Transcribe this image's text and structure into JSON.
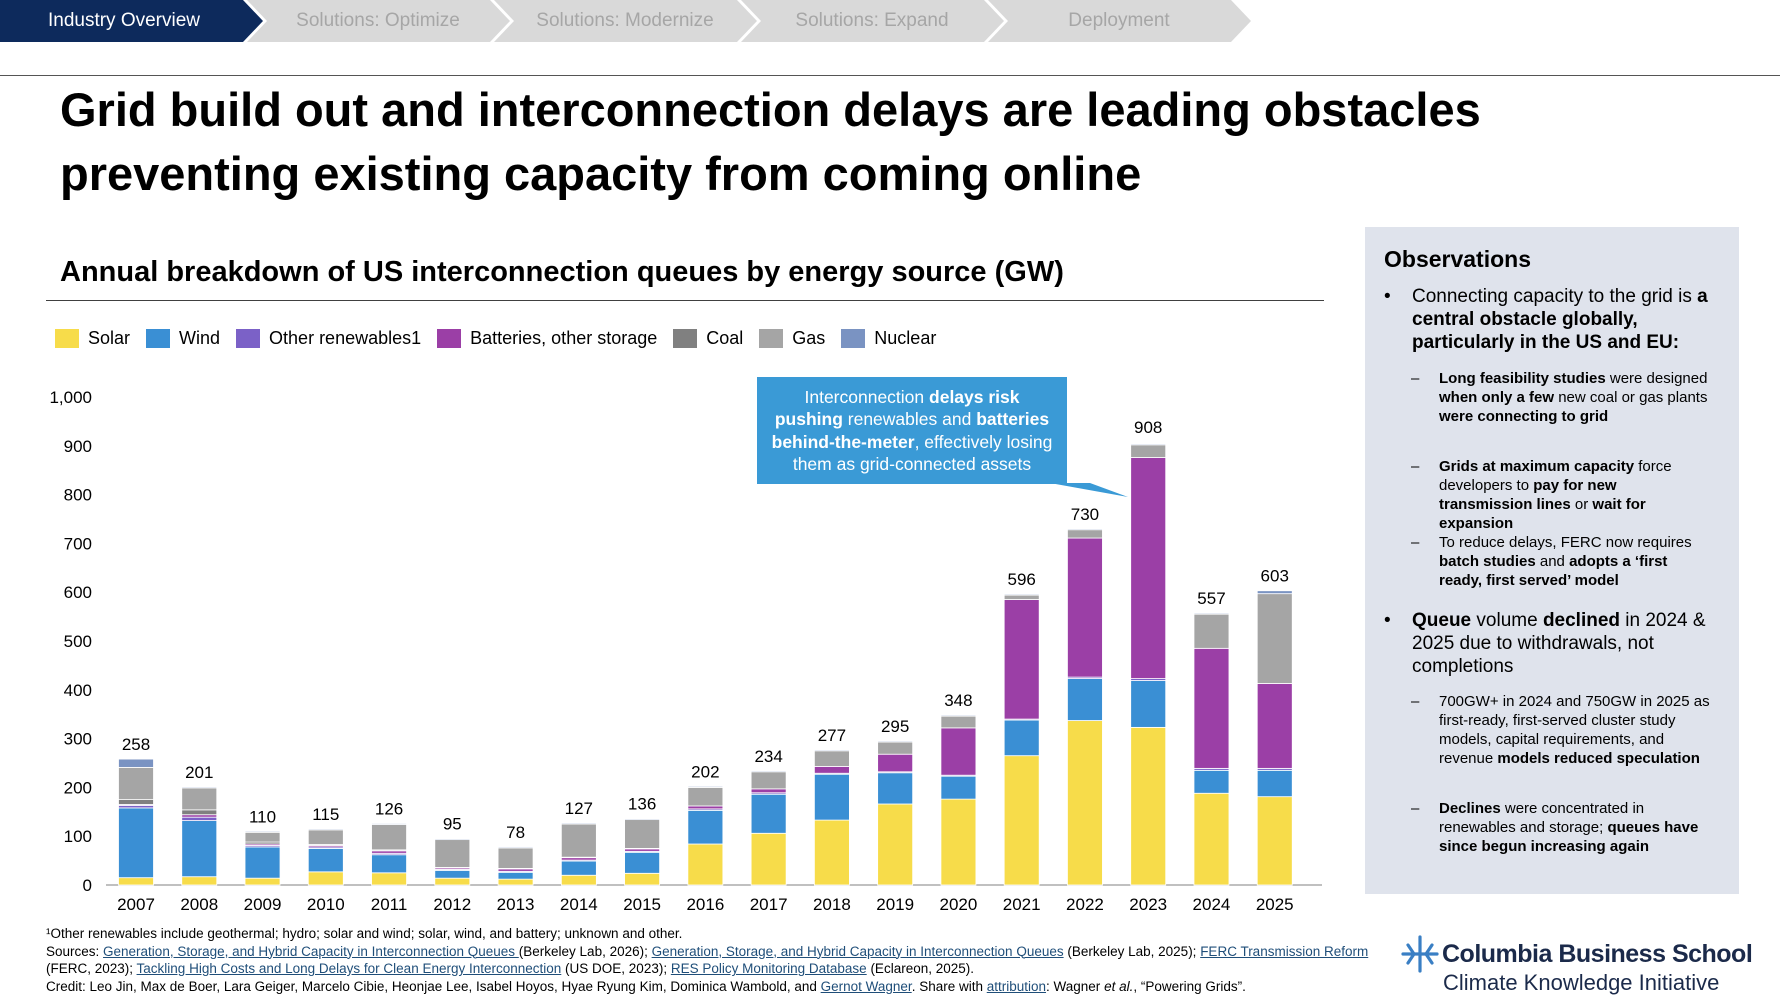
{
  "nav": {
    "tabs": [
      {
        "label": "Industry Overview",
        "active": true
      },
      {
        "label": "Solutions: Optimize",
        "active": false
      },
      {
        "label": "Solutions: Modernize",
        "active": false
      },
      {
        "label": "Solutions: Expand",
        "active": false
      },
      {
        "label": "Deployment",
        "active": false
      }
    ]
  },
  "page": {
    "title": "Grid build out and interconnection delays are leading obstacles preventing existing capacity from coming online"
  },
  "colors": {
    "nav_active": "#0d2a5c",
    "nav_inactive": "#d9d9d9",
    "callout": "#3a9ad6",
    "panel": "#dfe3ec"
  },
  "chart_data": {
    "type": "bar",
    "stacked": true,
    "title": "Annual breakdown of US interconnection queues by energy source (GW)",
    "xlabel": "",
    "ylabel": "",
    "ylim": [
      0,
      1000
    ],
    "yticks": [
      0,
      100,
      200,
      300,
      400,
      500,
      600,
      700,
      800,
      900,
      1000
    ],
    "ytick_labels": [
      "0",
      "100",
      "200",
      "300",
      "400",
      "500",
      "600",
      "700",
      "800",
      "900",
      "1,000"
    ],
    "grid": false,
    "legend_position": "top-left",
    "categories": [
      "2007",
      "2008",
      "2009",
      "2010",
      "2011",
      "2012",
      "2013",
      "2014",
      "2015",
      "2016",
      "2017",
      "2018",
      "2019",
      "2020",
      "2021",
      "2022",
      "2023",
      "2024",
      "2025"
    ],
    "totals": [
      258,
      201,
      110,
      115,
      126,
      95,
      78,
      127,
      136,
      202,
      234,
      277,
      295,
      348,
      596,
      730,
      908,
      557,
      603
    ],
    "total_labels": [
      "258",
      "201",
      "110",
      "115",
      "126",
      "95",
      "78",
      "127",
      "136",
      "202",
      "234",
      "277",
      "295",
      "348",
      "596",
      "730",
      "908",
      "557",
      "603"
    ],
    "series": [
      {
        "name": "Solar",
        "color": "#f7dc4a",
        "values": [
          15,
          17,
          14,
          27,
          25,
          14,
          12,
          20,
          24,
          84,
          106,
          133,
          166,
          176,
          265,
          337,
          323,
          188,
          181
        ]
      },
      {
        "name": "Wind",
        "color": "#3a8fd4",
        "values": [
          143,
          115,
          64,
          48,
          37,
          16,
          14,
          29,
          43,
          69,
          80,
          94,
          64,
          47,
          73,
          86,
          96,
          47,
          54
        ]
      },
      {
        "name": "Other renewables1",
        "color": "#7b61c7",
        "values": [
          5,
          7,
          3,
          3,
          3,
          2,
          2,
          2,
          2,
          3,
          3,
          2,
          2,
          2,
          2,
          3,
          4,
          4,
          4
        ]
      },
      {
        "name": "Batteries, other storage",
        "color": "#9b3fa6",
        "values": [
          2,
          5,
          3,
          3,
          5,
          3,
          5,
          5,
          5,
          6,
          8,
          14,
          36,
          97,
          245,
          285,
          453,
          246,
          174
        ]
      },
      {
        "name": "Coal",
        "color": "#808080",
        "values": [
          10,
          10,
          4,
          2,
          2,
          1,
          1,
          1,
          1,
          0,
          0,
          0,
          0,
          0,
          0,
          0,
          0,
          0,
          0
        ]
      },
      {
        "name": "Gas",
        "color": "#a5a5a5",
        "values": [
          66,
          45,
          20,
          30,
          52,
          57,
          42,
          68,
          59,
          38,
          35,
          32,
          25,
          24,
          9,
          17,
          26,
          70,
          184
        ]
      },
      {
        "name": "Nuclear",
        "color": "#7a93c2",
        "values": [
          17,
          2,
          2,
          2,
          2,
          2,
          2,
          2,
          2,
          2,
          2,
          2,
          2,
          2,
          2,
          2,
          2,
          2,
          6
        ]
      }
    ],
    "annotation": "Interconnection delays risk pushing renewables and batteries behind-the-meter, effectively losing them as grid-connected assets"
  },
  "callout": {
    "lines": [
      [
        {
          "t": "Interconnection ",
          "b": false
        },
        {
          "t": "delays risk",
          "b": true
        }
      ],
      [
        {
          "t": "pushing",
          "b": true
        },
        {
          "t": " renewables and ",
          "b": false
        },
        {
          "t": "batteries",
          "b": true
        }
      ],
      [
        {
          "t": "behind-the-meter",
          "b": true
        },
        {
          "t": ", effectively losing",
          "b": false
        }
      ],
      [
        {
          "t": "them as grid-connected assets",
          "b": false
        }
      ]
    ]
  },
  "observations": {
    "title": "Observations",
    "bullets": [
      {
        "text": [
          {
            "t": "Connecting capacity to the grid is ",
            "b": false
          },
          {
            "t": "a central obstacle globally, particularly in the US and EU:",
            "b": true
          }
        ],
        "subs": [
          [
            {
              "t": "Long feasibility studies",
              "b": true
            },
            {
              "t": " were designed ",
              "b": false
            },
            {
              "t": "when only a few",
              "b": true
            },
            {
              "t": " new coal or gas plants ",
              "b": false
            },
            {
              "t": "were connecting to grid",
              "b": true
            }
          ],
          [
            {
              "t": "Grids at maximum capacity",
              "b": true
            },
            {
              "t": " force developers to ",
              "b": false
            },
            {
              "t": "pay for new transmission lines",
              "b": true
            },
            {
              "t": " or ",
              "b": false
            },
            {
              "t": "wait for expansion",
              "b": true
            }
          ],
          [
            {
              "t": "To reduce delays, FERC now requires ",
              "b": false
            },
            {
              "t": "batch studies",
              "b": true
            },
            {
              "t": " and ",
              "b": false
            },
            {
              "t": "adopts a ‘first ready, first served’ model",
              "b": true
            }
          ]
        ]
      },
      {
        "text": [
          {
            "t": "Queue",
            "b": true
          },
          {
            "t": " volume ",
            "b": false
          },
          {
            "t": "declined",
            "b": true
          },
          {
            "t": " in 2024 & 2025 due to withdrawals, not completions",
            "b": false
          }
        ],
        "subs": [
          [
            {
              "t": "700GW+ in 2024 and 750GW in 2025 as first-ready, first-served cluster study models, capital requirements, and revenue ",
              "b": false
            },
            {
              "t": "models reduced speculation",
              "b": true
            }
          ],
          [
            {
              "t": "Declines",
              "b": true
            },
            {
              "t": " were concentrated in renewables and storage; ",
              "b": false
            },
            {
              "t": "queues have since begun increasing again",
              "b": true
            }
          ]
        ]
      }
    ]
  },
  "footnotes": {
    "note": "¹Other renewables include geothermal; hydro; solar and wind; solar, wind, and battery; unknown and other.",
    "sources": [
      {
        "t": "Sources: ",
        "link": false
      },
      {
        "t": "Generation, Storage, and Hybrid Capacity in Interconnection Queues ",
        "link": true
      },
      {
        "t": "(Berkeley Lab, 2026); ",
        "link": false
      },
      {
        "t": "Generation, Storage, and Hybrid Capacity in Interconnection Queues",
        "link": true
      },
      {
        "t": " (Berkeley Lab, 2025); ",
        "link": false
      },
      {
        "t": "FERC Transmission Reform ",
        "link": true
      },
      {
        "t": "(FERC, 2023); ",
        "link": false
      },
      {
        "t": "Tackling High Costs and Long Delays for Clean Energy Interconnection",
        "link": true
      },
      {
        "t": " (US DOE, 2023); ",
        "link": false
      },
      {
        "t": "RES Policy Monitoring Database",
        "link": true
      },
      {
        "t": " (Eclareon, 2025).",
        "link": false
      }
    ],
    "credit": [
      {
        "t": "Credit: Leo Jin, Max de Boer, Lara Geiger, Marcelo Cibie, Heonjae Lee, Isabel Hoyos, Hyae Ryung Kim, Dominica Wambold, and ",
        "link": false
      },
      {
        "t": "Gernot Wagner",
        "link": true
      },
      {
        "t": ". Share with ",
        "link": false
      },
      {
        "t": "attribution",
        "link": true
      },
      {
        "t": ": Wagner ",
        "link": false
      },
      {
        "t": "et al.",
        "link": false,
        "i": true
      },
      {
        "t": ", “Powering Grids”.",
        "link": false
      }
    ]
  },
  "logo": {
    "name": "Columbia Business School",
    "subtitle": "Climate Knowledge Initiative"
  }
}
